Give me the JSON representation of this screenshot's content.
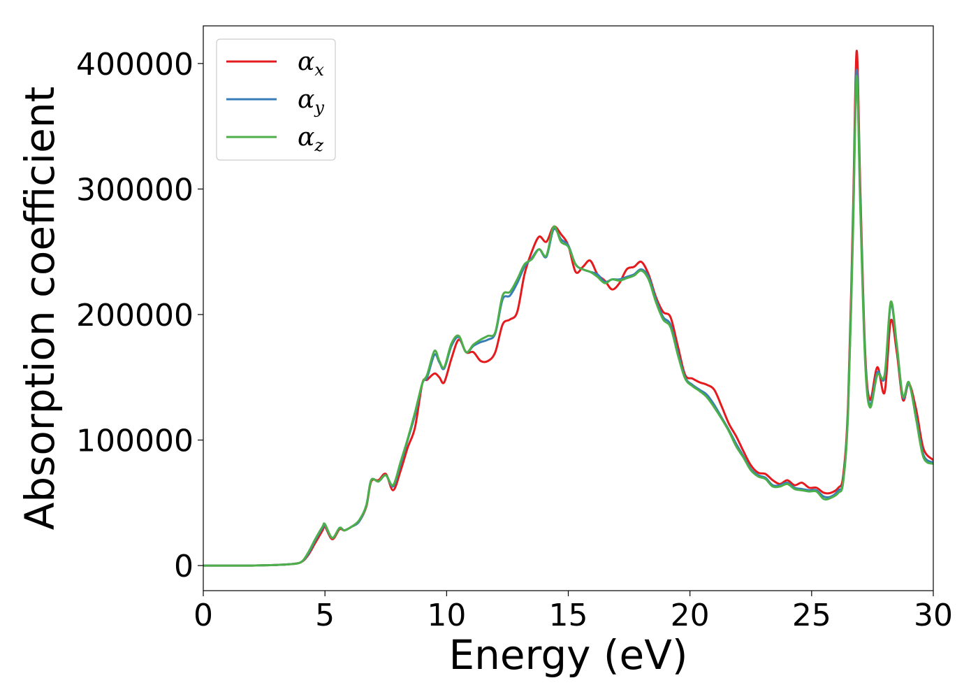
{
  "chart_data": {
    "type": "line",
    "title": "",
    "xlabel": "Energy (eV)",
    "ylabel": "Absorption coefficient",
    "xlim": [
      0,
      30
    ],
    "ylim": [
      -20000,
      430000
    ],
    "xticks": [
      0,
      5,
      10,
      15,
      20,
      25,
      30
    ],
    "yticks": [
      0,
      100000,
      200000,
      300000,
      400000
    ],
    "xtick_labels": [
      "0",
      "5",
      "10",
      "15",
      "20",
      "25",
      "30"
    ],
    "ytick_labels": [
      "0",
      "100000",
      "200000",
      "300000",
      "400000"
    ],
    "grid": false,
    "legend_position": "top-left",
    "series": [
      {
        "name": "αx",
        "symbol": "α",
        "subscript": "x",
        "color": "#e41a1c",
        "x": [
          0,
          1,
          2,
          3,
          3.5,
          4,
          4.3,
          4.6,
          4.9,
          5.0,
          5.3,
          5.6,
          5.8,
          6.1,
          6.4,
          6.7,
          6.9,
          7.2,
          7.5,
          7.8,
          8.1,
          8.4,
          8.7,
          9.0,
          9.2,
          9.5,
          9.7,
          9.9,
          10.2,
          10.5,
          10.8,
          11.1,
          11.4,
          11.7,
          12.0,
          12.3,
          12.6,
          12.9,
          13.2,
          13.5,
          13.8,
          14.1,
          14.4,
          14.7,
          15.0,
          15.3,
          15.6,
          15.9,
          16.2,
          16.5,
          16.8,
          17.1,
          17.4,
          17.7,
          18.0,
          18.3,
          18.6,
          18.9,
          19.2,
          19.5,
          19.8,
          20.1,
          20.4,
          20.7,
          21.0,
          21.3,
          21.6,
          21.9,
          22.2,
          22.5,
          22.8,
          23.1,
          23.4,
          23.7,
          24.0,
          24.3,
          24.6,
          24.9,
          25.2,
          25.5,
          25.8,
          26.1,
          26.3,
          26.5,
          26.7,
          26.85,
          27.0,
          27.2,
          27.4,
          27.7,
          28.0,
          28.25,
          28.5,
          28.75,
          29.0,
          29.3,
          29.6,
          30.0
        ],
        "y": [
          0,
          0,
          0,
          500,
          1000,
          2500,
          8000,
          18000,
          28000,
          31000,
          21000,
          29000,
          28000,
          31000,
          35000,
          47000,
          67000,
          68000,
          73000,
          60000,
          75000,
          94000,
          110000,
          145000,
          148000,
          153000,
          150000,
          146000,
          165000,
          180000,
          170000,
          170000,
          163000,
          163000,
          170000,
          192000,
          196000,
          202000,
          232000,
          250000,
          262000,
          258000,
          270000,
          264000,
          255000,
          234000,
          238000,
          243000,
          232000,
          227000,
          220000,
          225000,
          236000,
          238000,
          242000,
          232000,
          214000,
          202000,
          198000,
          175000,
          152000,
          149000,
          146000,
          144000,
          140000,
          127000,
          113000,
          103000,
          91000,
          80000,
          74000,
          73000,
          68000,
          65000,
          68000,
          64000,
          66000,
          62000,
          62000,
          58000,
          58000,
          62000,
          72000,
          130000,
          280000,
          410000,
          300000,
          170000,
          132000,
          158000,
          138000,
          195000,
          170000,
          132000,
          145000,
          124000,
          93000,
          84000
        ]
      },
      {
        "name": "αy",
        "symbol": "α",
        "subscript": "y",
        "color": "#377eb8",
        "x": [
          0,
          1,
          2,
          3,
          3.5,
          4,
          4.3,
          4.6,
          4.9,
          5.0,
          5.3,
          5.6,
          5.8,
          6.1,
          6.4,
          6.7,
          6.9,
          7.2,
          7.5,
          7.8,
          8.1,
          8.4,
          8.7,
          9.0,
          9.2,
          9.5,
          9.7,
          9.9,
          10.2,
          10.5,
          10.8,
          11.1,
          11.4,
          11.7,
          12.0,
          12.3,
          12.6,
          12.9,
          13.2,
          13.5,
          13.8,
          14.1,
          14.4,
          14.7,
          15.0,
          15.3,
          15.6,
          15.9,
          16.2,
          16.5,
          16.8,
          17.1,
          17.4,
          17.7,
          18.0,
          18.3,
          18.6,
          18.9,
          19.2,
          19.5,
          19.8,
          20.1,
          20.4,
          20.7,
          21.0,
          21.3,
          21.6,
          21.9,
          22.2,
          22.5,
          22.8,
          23.1,
          23.4,
          23.7,
          24.0,
          24.3,
          24.6,
          24.9,
          25.2,
          25.5,
          25.8,
          26.1,
          26.3,
          26.5,
          26.7,
          26.85,
          27.0,
          27.2,
          27.4,
          27.7,
          28.0,
          28.25,
          28.5,
          28.75,
          29.0,
          29.3,
          29.6,
          30.0
        ],
        "y": [
          0,
          0,
          0,
          500,
          1000,
          2500,
          9000,
          20000,
          30000,
          32000,
          22000,
          30000,
          28000,
          31000,
          35000,
          48000,
          68000,
          67000,
          72000,
          63000,
          80000,
          100000,
          120000,
          145000,
          150000,
          168000,
          162000,
          157000,
          175000,
          182000,
          170000,
          175000,
          178000,
          180000,
          185000,
          212000,
          215000,
          225000,
          238000,
          245000,
          252000,
          246000,
          268000,
          260000,
          255000,
          240000,
          236000,
          234000,
          232000,
          226000,
          228000,
          228000,
          230000,
          232000,
          236000,
          230000,
          212000,
          198000,
          192000,
          170000,
          150000,
          144000,
          140000,
          136000,
          128000,
          118000,
          108000,
          97000,
          87000,
          77000,
          72000,
          70000,
          64000,
          64000,
          66000,
          62000,
          61000,
          60000,
          60000,
          55000,
          55000,
          60000,
          68000,
          125000,
          270000,
          395000,
          290000,
          165000,
          128000,
          154000,
          150000,
          208000,
          175000,
          134000,
          145000,
          118000,
          88000,
          82000
        ]
      },
      {
        "name": "αz",
        "symbol": "α",
        "subscript": "z",
        "color": "#4daf4a",
        "x": [
          0,
          1,
          2,
          3,
          3.5,
          4,
          4.3,
          4.6,
          4.9,
          5.0,
          5.3,
          5.6,
          5.8,
          6.1,
          6.4,
          6.7,
          6.9,
          7.2,
          7.5,
          7.8,
          8.1,
          8.4,
          8.7,
          9.0,
          9.2,
          9.5,
          9.7,
          9.9,
          10.2,
          10.5,
          10.8,
          11.1,
          11.4,
          11.7,
          12.0,
          12.3,
          12.6,
          12.9,
          13.2,
          13.5,
          13.8,
          14.1,
          14.4,
          14.7,
          15.0,
          15.3,
          15.6,
          15.9,
          16.2,
          16.5,
          16.8,
          17.1,
          17.4,
          17.7,
          18.0,
          18.3,
          18.6,
          18.9,
          19.2,
          19.5,
          19.8,
          20.1,
          20.4,
          20.7,
          21.0,
          21.3,
          21.6,
          21.9,
          22.2,
          22.5,
          22.8,
          23.1,
          23.4,
          23.7,
          24.0,
          24.3,
          24.6,
          24.9,
          25.2,
          25.5,
          25.8,
          26.1,
          26.3,
          26.5,
          26.7,
          26.85,
          27.0,
          27.2,
          27.4,
          27.7,
          28.0,
          28.25,
          28.5,
          28.75,
          29.0,
          29.3,
          29.6,
          30.0
        ],
        "y": [
          0,
          0,
          0,
          500,
          1000,
          2500,
          10000,
          21000,
          31000,
          33000,
          22000,
          30000,
          28000,
          31000,
          36000,
          48000,
          68000,
          67000,
          72000,
          64000,
          82000,
          101000,
          122000,
          145000,
          152000,
          171000,
          163000,
          158000,
          177000,
          183000,
          170000,
          176000,
          180000,
          183000,
          186000,
          215000,
          218000,
          228000,
          240000,
          244000,
          252000,
          247000,
          270000,
          258000,
          254000,
          240000,
          236000,
          234000,
          230000,
          225000,
          228000,
          227000,
          229000,
          231000,
          235000,
          228000,
          210000,
          196000,
          190000,
          168000,
          149000,
          143000,
          139000,
          134000,
          126000,
          117000,
          107000,
          95000,
          86000,
          76000,
          71000,
          69000,
          63000,
          63000,
          65000,
          61000,
          60000,
          59000,
          59000,
          53000,
          54000,
          58000,
          67000,
          123000,
          265000,
          390000,
          285000,
          162000,
          126000,
          152000,
          152000,
          210000,
          176000,
          135000,
          146000,
          116000,
          86000,
          81000
        ]
      }
    ]
  }
}
